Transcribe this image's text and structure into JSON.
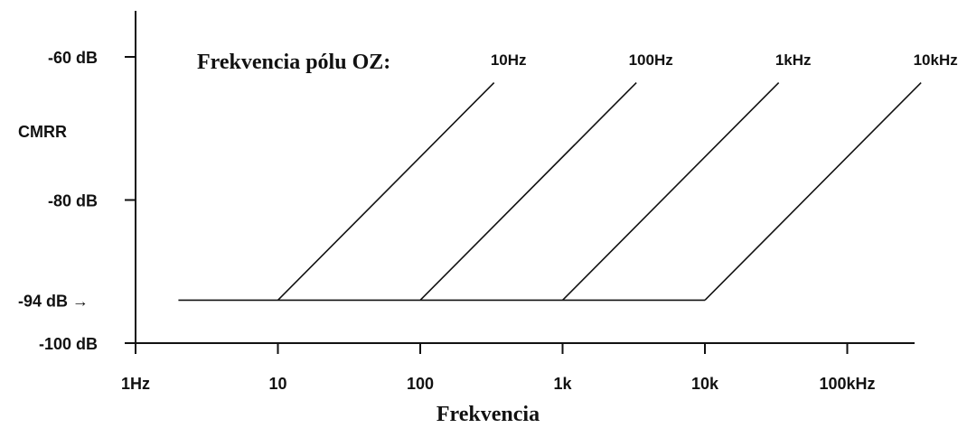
{
  "chart_data": {
    "type": "line",
    "x_scale": "log",
    "y_scale": "linear",
    "xlabel": "Frekvencia",
    "ylabel": "CMRR",
    "x_tick_labels": [
      {
        "x": 1,
        "label": "1Hz"
      },
      {
        "x": 10,
        "label": "10"
      },
      {
        "x": 100,
        "label": "100"
      },
      {
        "x": 1000,
        "label": "1k"
      },
      {
        "x": 10000,
        "label": "10k"
      },
      {
        "x": 100000,
        "label": "100kHz"
      }
    ],
    "y_tick_labels": [
      {
        "y": -60,
        "label": "-60 dB"
      },
      {
        "y": -80,
        "label": "-80 dB"
      },
      {
        "y": -100,
        "label": "-100 dB"
      }
    ],
    "y_marker": {
      "y": -94,
      "label": "-94 dB →"
    },
    "ylim": [
      -100,
      -56
    ],
    "xlim": [
      1,
      700000
    ],
    "legend_title": "Frekvencia pólu OZ:",
    "series": [
      {
        "name": "10Hz",
        "points": [
          [
            2,
            -94
          ],
          [
            10,
            -94
          ],
          [
            330,
            -63.6
          ]
        ]
      },
      {
        "name": "100Hz",
        "points": [
          [
            10,
            -94
          ],
          [
            100,
            -94
          ],
          [
            3300,
            -63.6
          ]
        ]
      },
      {
        "name": "1kHz",
        "points": [
          [
            100,
            -94
          ],
          [
            1000,
            -94
          ],
          [
            33000,
            -63.6
          ]
        ]
      },
      {
        "name": "10kHz",
        "points": [
          [
            1000,
            -94
          ],
          [
            10000,
            -94
          ],
          [
            330000,
            -63.6
          ]
        ]
      }
    ],
    "grid": false
  }
}
